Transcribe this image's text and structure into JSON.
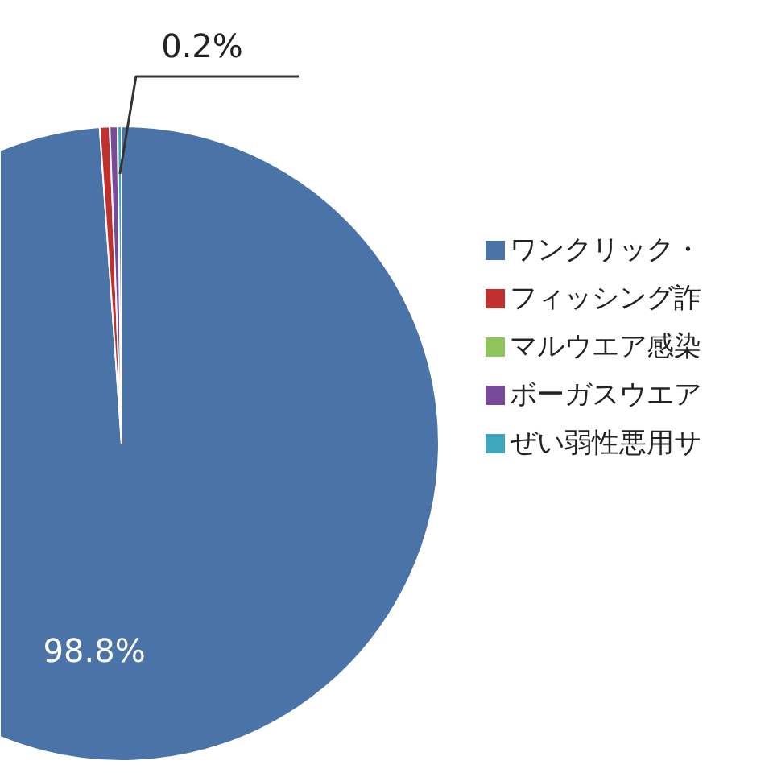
{
  "chart_data": {
    "type": "pie",
    "categories": [
      "ワンクリック・",
      "フィッシング詐",
      "マルウエア感染",
      "ボーガスウエア",
      "ぜい弱性悪用サ"
    ],
    "values": [
      98.8,
      0.5,
      null,
      0.4,
      0.2
    ],
    "colors": [
      "#4a74a8",
      "#c0302c",
      "#8fc45a",
      "#7a4a9a",
      "#3ea6bf"
    ],
    "value_labels": [
      "98.8%",
      null,
      null,
      null,
      "0.2%"
    ],
    "legend": "right"
  }
}
